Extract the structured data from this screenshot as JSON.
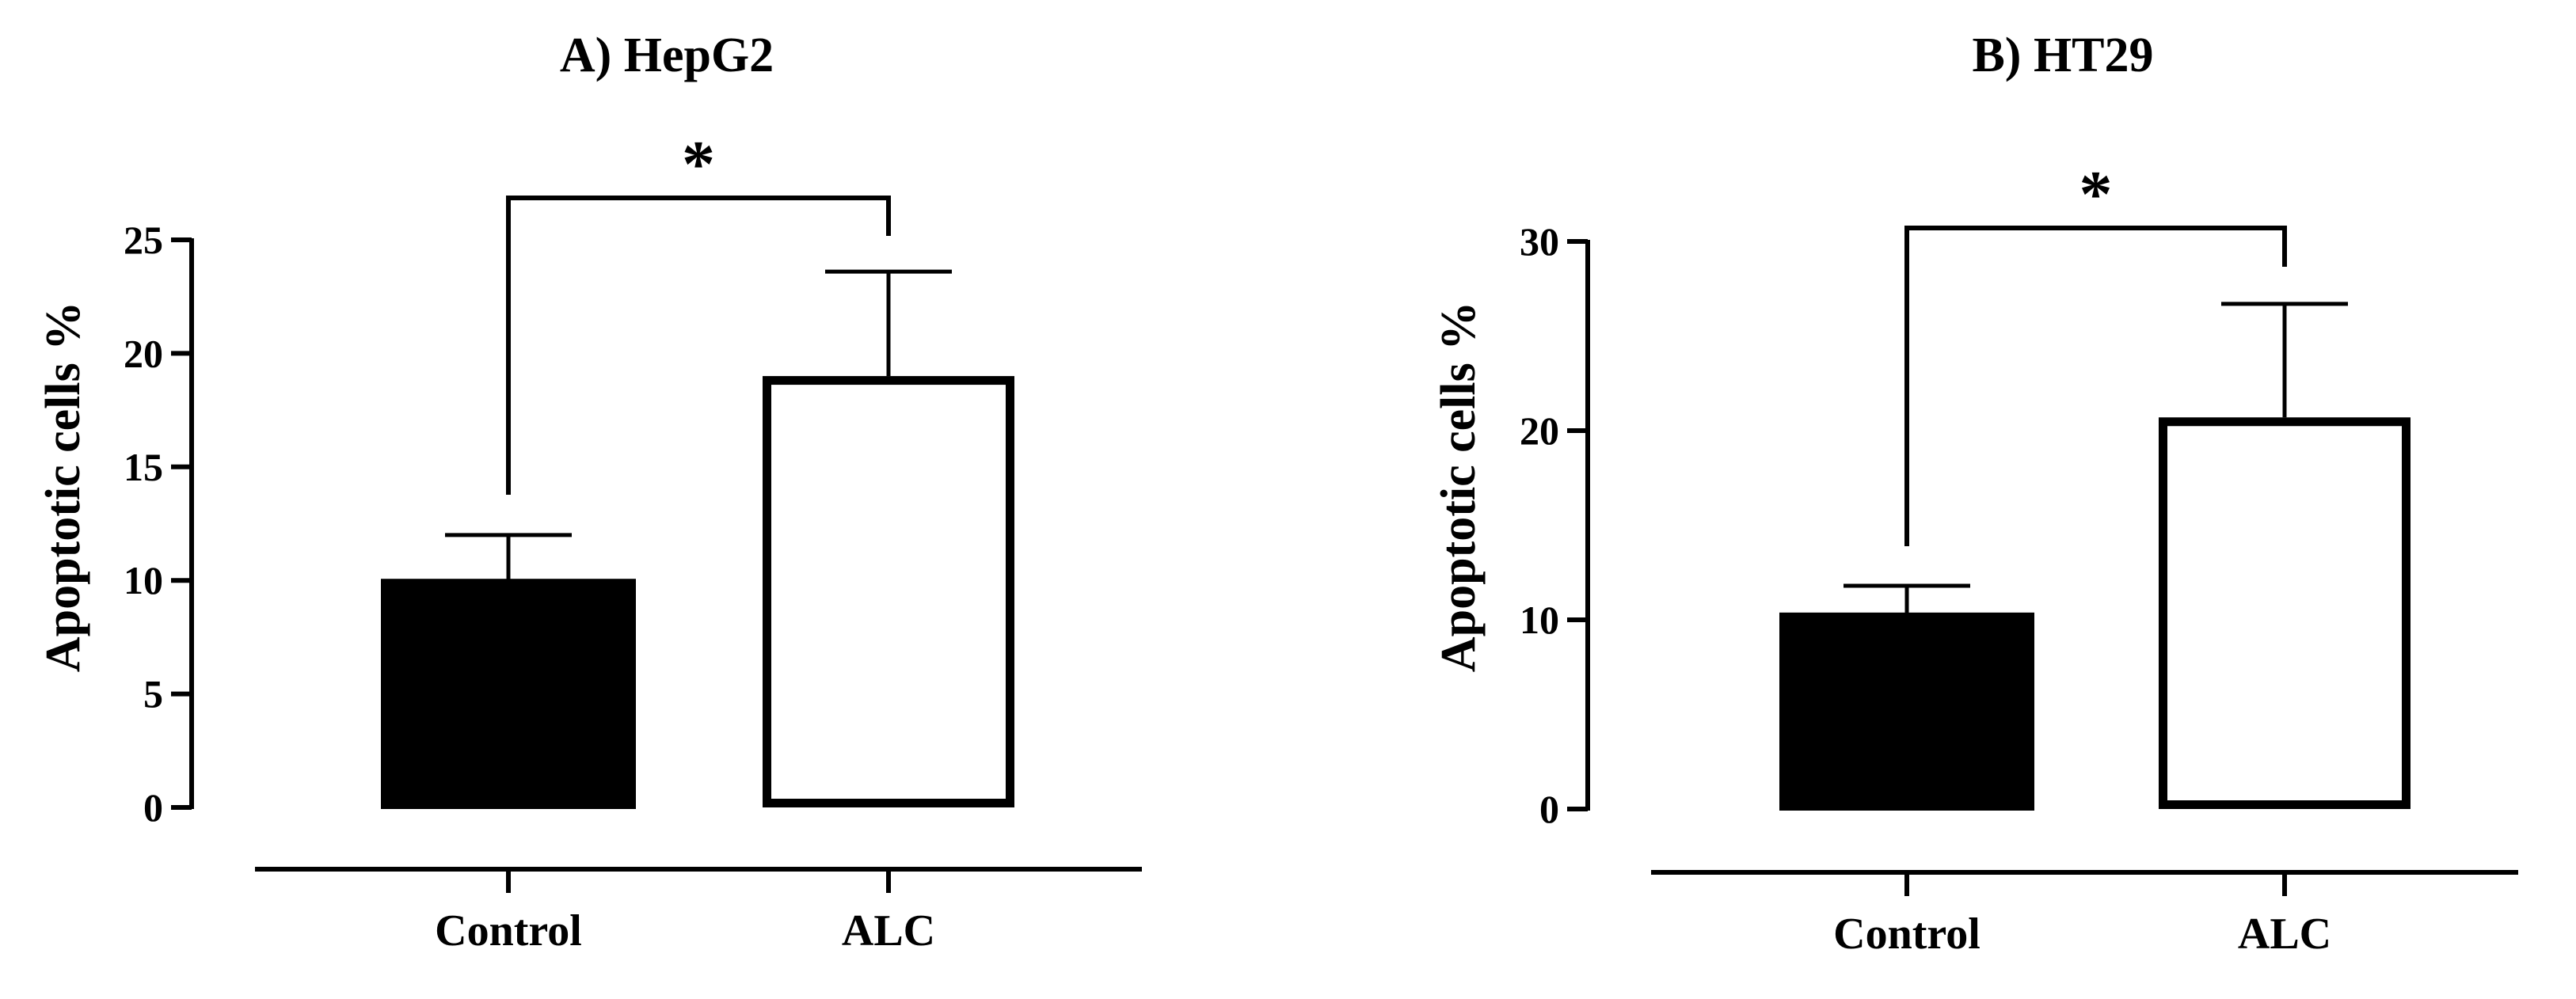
{
  "chart_data": [
    {
      "type": "bar",
      "title": "A) HepG2",
      "ylabel": "Apoptotic cells %",
      "xlabel": "",
      "categories": [
        "Control",
        "ALC"
      ],
      "values": [
        10,
        19
      ],
      "errors": [
        2,
        4.6
      ],
      "bar_styles": [
        "filled",
        "open"
      ],
      "ylim": [
        0,
        25
      ],
      "yticks": [
        0,
        5,
        10,
        15,
        20,
        25
      ],
      "ytick_labels": [
        "0",
        "5",
        "10",
        "15",
        "20",
        "25"
      ],
      "significance": [
        {
          "pair": [
            "Control",
            "ALC"
          ],
          "label": "*"
        }
      ],
      "grid": false
    },
    {
      "type": "bar",
      "title": "B) HT29",
      "ylabel": "Apoptotic cells %",
      "xlabel": "",
      "categories": [
        "Control",
        "ALC"
      ],
      "values": [
        10.3,
        20.7
      ],
      "errors": [
        1.5,
        6
      ],
      "bar_styles": [
        "filled",
        "open"
      ],
      "ylim": [
        0,
        30
      ],
      "yticks": [
        0,
        10,
        20,
        30
      ],
      "ytick_labels": [
        "0",
        "10",
        "20",
        "30"
      ],
      "significance": [
        {
          "pair": [
            "Control",
            "ALC"
          ],
          "label": "*"
        }
      ],
      "grid": false
    }
  ],
  "colors": {
    "ink": "#000000",
    "background": "#ffffff"
  }
}
